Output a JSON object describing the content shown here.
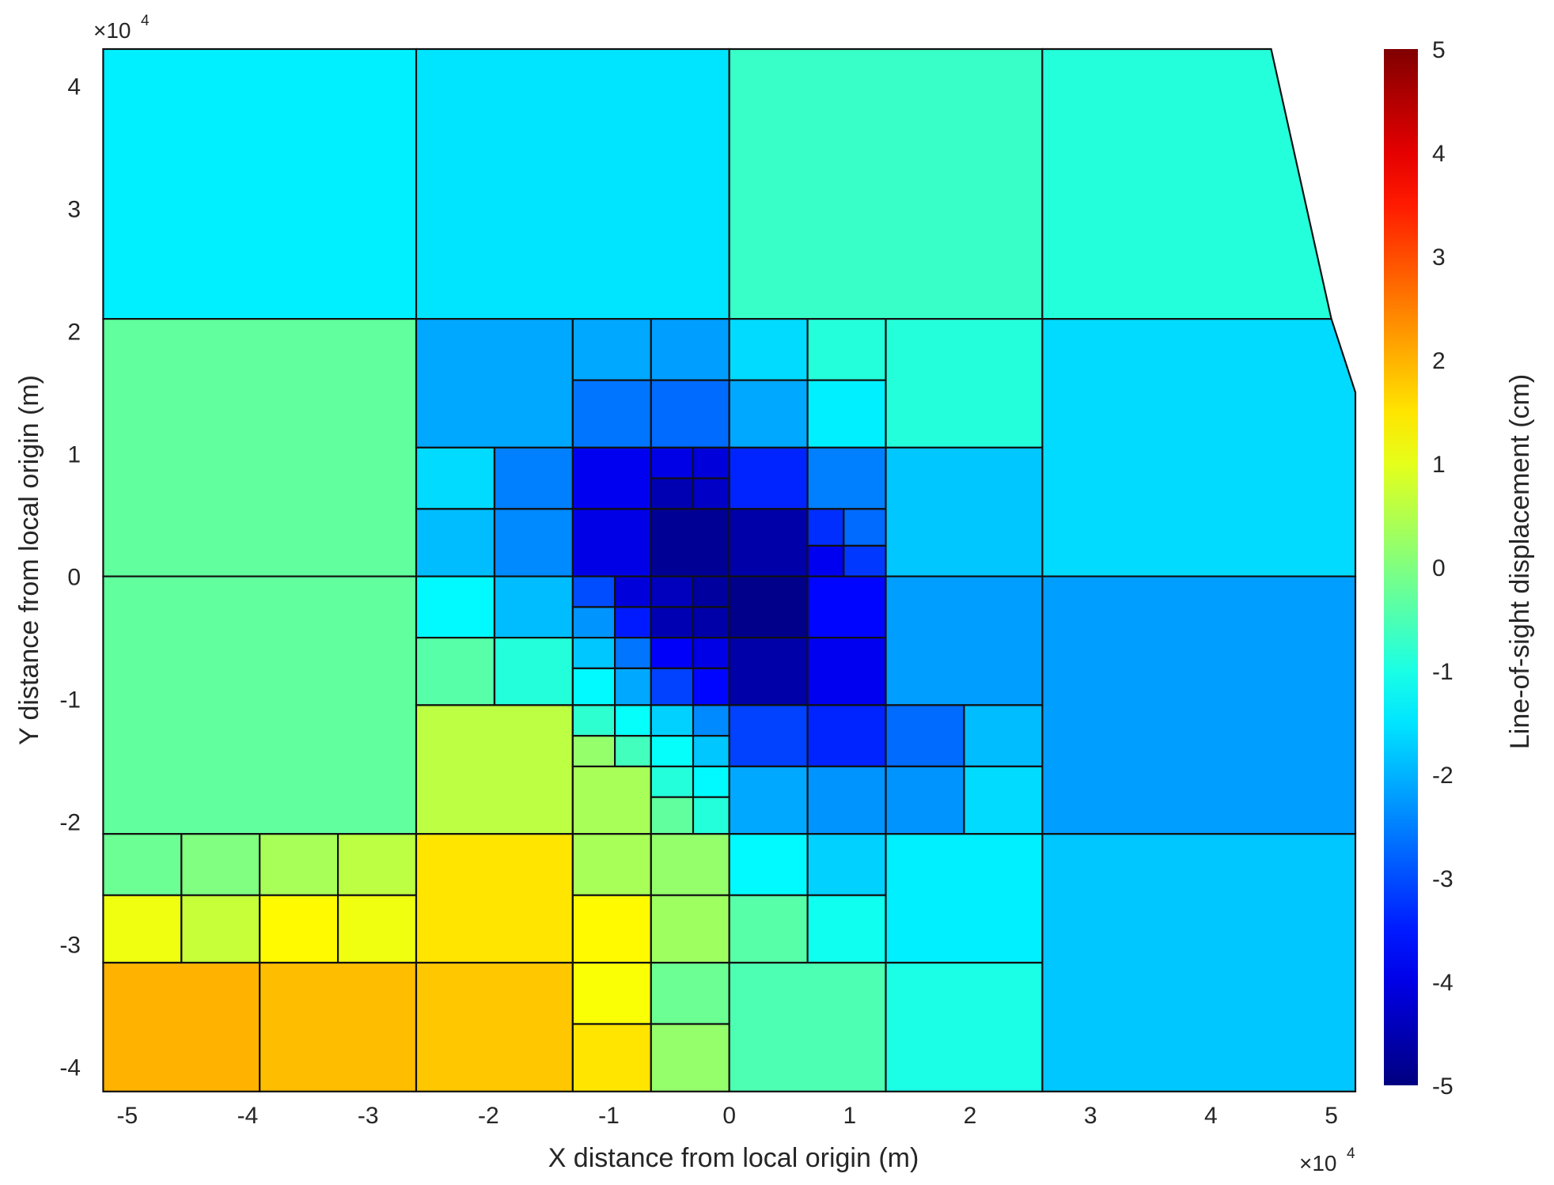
{
  "chart_data": {
    "type": "heatmap",
    "xlabel": "X distance from local origin (m)",
    "ylabel": "Y distance from local origin (m)",
    "x_multiplier": "×10",
    "x_multiplier_exp": "4",
    "y_multiplier": "×10",
    "y_multiplier_exp": "4",
    "xlim": [
      -5.15,
      5.2
    ],
    "ylim": [
      -4.15,
      4.3
    ],
    "x_ticks": [
      -5,
      -4,
      -3,
      -2,
      -1,
      0,
      1,
      2,
      3,
      4,
      5
    ],
    "x_tick_labels": [
      "-5",
      "-4",
      "-3",
      "-2",
      "-1",
      "0",
      "1",
      "2",
      "3",
      "4",
      "5"
    ],
    "y_ticks": [
      -4,
      -3,
      -2,
      -1,
      0,
      1,
      2,
      3,
      4
    ],
    "y_tick_labels": [
      "-4",
      "-3",
      "-2",
      "-1",
      "0",
      "1",
      "2",
      "3",
      "4"
    ],
    "colorbar": {
      "label": "Line-of-sight displacement (cm)",
      "range": [
        -5,
        5
      ],
      "colormap": "jet",
      "ticks": [
        -5,
        -4,
        -3,
        -2,
        -1,
        0,
        1,
        2,
        3,
        4,
        5
      ],
      "tick_labels": [
        "-5",
        "-4",
        "-3",
        "-2",
        "-1",
        "0",
        "1",
        "2",
        "3",
        "4",
        "5"
      ]
    },
    "cells": [
      {
        "x": [
          -5.2,
          -2.6
        ],
        "y": [
          2.1,
          4.3
        ],
        "v": -1.4
      },
      {
        "x": [
          -2.6,
          0.0
        ],
        "y": [
          2.1,
          4.3
        ],
        "v": -1.5
      },
      {
        "x": [
          0.0,
          2.6
        ],
        "y": [
          2.1,
          4.3
        ],
        "v": -0.7
      },
      {
        "x": [
          2.6,
          5.2
        ],
        "y": [
          2.1,
          4.3
        ],
        "poly": [
          [
            2.6,
            2.1
          ],
          [
            2.6,
            4.3
          ],
          [
            4.5,
            4.3
          ],
          [
            5.0,
            2.1
          ]
        ],
        "v": -0.9
      },
      {
        "x": [
          -5.2,
          -2.6
        ],
        "y": [
          0.0,
          2.1
        ],
        "v": -0.3
      },
      {
        "x": [
          2.6,
          5.2
        ],
        "y": [
          0.0,
          2.1
        ],
        "poly": [
          [
            2.6,
            0.0
          ],
          [
            2.6,
            2.1
          ],
          [
            5.0,
            2.1
          ],
          [
            5.2,
            1.5
          ],
          [
            5.2,
            0.0
          ]
        ],
        "v": -1.6
      },
      {
        "x": [
          -5.2,
          -2.6
        ],
        "y": [
          -2.1,
          0.0
        ],
        "v": -0.3
      },
      {
        "x": [
          2.6,
          5.2
        ],
        "y": [
          -2.1,
          0.0
        ],
        "v": -2.2
      },
      {
        "x": [
          2.6,
          5.2
        ],
        "y": [
          -4.2,
          -2.1
        ],
        "v": -1.8
      },
      {
        "x": [
          -2.6,
          -1.3
        ],
        "y": [
          1.05,
          2.1
        ],
        "v": -2.1
      },
      {
        "x": [
          -1.3,
          -0.65
        ],
        "y": [
          1.6,
          2.1
        ],
        "v": -2.1
      },
      {
        "x": [
          -0.65,
          0.0
        ],
        "y": [
          1.6,
          2.1
        ],
        "v": -2.2
      },
      {
        "x": [
          0.0,
          0.65
        ],
        "y": [
          1.6,
          2.1
        ],
        "v": -1.6
      },
      {
        "x": [
          0.65,
          1.3
        ],
        "y": [
          1.6,
          2.1
        ],
        "v": -0.9
      },
      {
        "x": [
          -1.3,
          -0.65
        ],
        "y": [
          1.05,
          1.6
        ],
        "v": -2.6
      },
      {
        "x": [
          -0.65,
          0.0
        ],
        "y": [
          1.05,
          1.6
        ],
        "v": -2.7
      },
      {
        "x": [
          0.0,
          0.65
        ],
        "y": [
          1.05,
          1.6
        ],
        "v": -2.1
      },
      {
        "x": [
          0.65,
          1.3
        ],
        "y": [
          1.05,
          1.6
        ],
        "v": -1.4
      },
      {
        "x": [
          1.3,
          2.6
        ],
        "y": [
          1.05,
          2.1
        ],
        "v": -0.9
      },
      {
        "x": [
          -2.6,
          -1.95
        ],
        "y": [
          0.55,
          1.05
        ],
        "v": -1.6
      },
      {
        "x": [
          -1.95,
          -1.3
        ],
        "y": [
          0.55,
          1.05
        ],
        "v": -2.5
      },
      {
        "x": [
          -2.6,
          -1.95
        ],
        "y": [
          0.0,
          0.55
        ],
        "v": -1.9
      },
      {
        "x": [
          -1.95,
          -1.3
        ],
        "y": [
          0.0,
          0.55
        ],
        "v": -2.4
      },
      {
        "x": [
          -1.3,
          -0.65
        ],
        "y": [
          0.55,
          1.05
        ],
        "v": -3.9
      },
      {
        "x": [
          -0.65,
          -0.3
        ],
        "y": [
          0.8,
          1.05
        ],
        "v": -4.0
      },
      {
        "x": [
          -0.3,
          0.0
        ],
        "y": [
          0.8,
          1.05
        ],
        "v": -4.1
      },
      {
        "x": [
          -0.65,
          -0.3
        ],
        "y": [
          0.55,
          0.8
        ],
        "v": -4.5
      },
      {
        "x": [
          -0.3,
          0.0
        ],
        "y": [
          0.55,
          0.8
        ],
        "v": -4.3
      },
      {
        "x": [
          -1.3,
          -0.65
        ],
        "y": [
          0.0,
          0.55
        ],
        "v": -4.0
      },
      {
        "x": [
          -0.65,
          0.0
        ],
        "y": [
          0.0,
          0.55
        ],
        "v": -4.8
      },
      {
        "x": [
          0.0,
          0.65
        ],
        "y": [
          0.55,
          1.05
        ],
        "v": -3.4
      },
      {
        "x": [
          0.65,
          1.3
        ],
        "y": [
          0.55,
          1.05
        ],
        "v": -2.5
      },
      {
        "x": [
          0.0,
          0.65
        ],
        "y": [
          0.0,
          0.55
        ],
        "v": -4.6
      },
      {
        "x": [
          0.65,
          0.95
        ],
        "y": [
          0.25,
          0.55
        ],
        "v": -3.3
      },
      {
        "x": [
          0.95,
          1.3
        ],
        "y": [
          0.25,
          0.55
        ],
        "v": -2.7
      },
      {
        "x": [
          0.65,
          0.95
        ],
        "y": [
          0.0,
          0.25
        ],
        "v": -3.9
      },
      {
        "x": [
          0.95,
          1.3
        ],
        "y": [
          0.0,
          0.25
        ],
        "v": -3.2
      },
      {
        "x": [
          1.3,
          2.6
        ],
        "y": [
          0.0,
          1.05
        ],
        "v": -1.8
      },
      {
        "x": [
          -2.6,
          -1.95
        ],
        "y": [
          -0.5,
          0.0
        ],
        "v": -1.3
      },
      {
        "x": [
          -1.95,
          -1.3
        ],
        "y": [
          -0.5,
          0.0
        ],
        "v": -1.9
      },
      {
        "x": [
          -2.6,
          -1.95
        ],
        "y": [
          -1.05,
          -0.5
        ],
        "v": -0.4
      },
      {
        "x": [
          -1.95,
          -1.3
        ],
        "y": [
          -1.05,
          -0.5
        ],
        "v": -0.9
      },
      {
        "x": [
          -1.3,
          -0.95
        ],
        "y": [
          -0.25,
          0.0
        ],
        "v": -3.0
      },
      {
        "x": [
          -0.95,
          -0.65
        ],
        "y": [
          -0.25,
          0.0
        ],
        "v": -4.1
      },
      {
        "x": [
          -1.3,
          -0.95
        ],
        "y": [
          -0.5,
          -0.25
        ],
        "v": -2.3
      },
      {
        "x": [
          -0.95,
          -0.65
        ],
        "y": [
          -0.5,
          -0.25
        ],
        "v": -3.5
      },
      {
        "x": [
          -0.65,
          -0.3
        ],
        "y": [
          -0.25,
          0.0
        ],
        "v": -4.4
      },
      {
        "x": [
          -0.3,
          0.0
        ],
        "y": [
          -0.25,
          0.0
        ],
        "v": -4.7
      },
      {
        "x": [
          -0.65,
          -0.3
        ],
        "y": [
          -0.5,
          -0.25
        ],
        "v": -4.5
      },
      {
        "x": [
          -0.3,
          0.0
        ],
        "y": [
          -0.5,
          -0.25
        ],
        "v": -4.6
      },
      {
        "x": [
          -1.3,
          -0.95
        ],
        "y": [
          -0.75,
          -0.5
        ],
        "v": -1.8
      },
      {
        "x": [
          -0.95,
          -0.65
        ],
        "y": [
          -0.75,
          -0.5
        ],
        "v": -2.6
      },
      {
        "x": [
          -1.3,
          -0.95
        ],
        "y": [
          -1.05,
          -0.75
        ],
        "v": -1.3
      },
      {
        "x": [
          -0.95,
          -0.65
        ],
        "y": [
          -1.05,
          -0.75
        ],
        "v": -2.1
      },
      {
        "x": [
          -0.65,
          -0.3
        ],
        "y": [
          -0.75,
          -0.5
        ],
        "v": -3.8
      },
      {
        "x": [
          -0.3,
          0.0
        ],
        "y": [
          -0.75,
          -0.5
        ],
        "v": -4.0
      },
      {
        "x": [
          -0.65,
          -0.3
        ],
        "y": [
          -1.05,
          -0.75
        ],
        "v": -3.1
      },
      {
        "x": [
          -0.3,
          0.0
        ],
        "y": [
          -1.05,
          -0.75
        ],
        "v": -3.7
      },
      {
        "x": [
          0.0,
          0.65
        ],
        "y": [
          -0.5,
          0.0
        ],
        "v": -4.9
      },
      {
        "x": [
          0.65,
          1.3
        ],
        "y": [
          -0.5,
          0.0
        ],
        "v": -3.7
      },
      {
        "x": [
          0.0,
          0.65
        ],
        "y": [
          -1.05,
          -0.5
        ],
        "v": -4.6
      },
      {
        "x": [
          0.65,
          1.3
        ],
        "y": [
          -1.05,
          -0.5
        ],
        "v": -3.9
      },
      {
        "x": [
          1.3,
          2.6
        ],
        "y": [
          -1.05,
          0.0
        ],
        "v": -2.2
      },
      {
        "x": [
          -2.6,
          -1.3
        ],
        "y": [
          -2.1,
          -1.05
        ],
        "v": 0.6
      },
      {
        "x": [
          -1.3,
          -0.95
        ],
        "y": [
          -1.3,
          -1.05
        ],
        "v": -0.8
      },
      {
        "x": [
          -0.95,
          -0.65
        ],
        "y": [
          -1.3,
          -1.05
        ],
        "v": -1.2
      },
      {
        "x": [
          -1.3,
          -0.95
        ],
        "y": [
          -1.55,
          -1.3
        ],
        "v": 0.2
      },
      {
        "x": [
          -0.95,
          -0.65
        ],
        "y": [
          -1.55,
          -1.3
        ],
        "v": -0.6
      },
      {
        "x": [
          -0.65,
          -0.3
        ],
        "y": [
          -1.3,
          -1.05
        ],
        "v": -1.7
      },
      {
        "x": [
          -0.3,
          0.0
        ],
        "y": [
          -1.3,
          -1.05
        ],
        "v": -2.4
      },
      {
        "x": [
          -0.65,
          -0.3
        ],
        "y": [
          -1.55,
          -1.3
        ],
        "v": -1.2
      },
      {
        "x": [
          -0.3,
          0.0
        ],
        "y": [
          -1.55,
          -1.3
        ],
        "v": -1.8
      },
      {
        "x": [
          -1.3,
          -0.65
        ],
        "y": [
          -2.1,
          -1.55
        ],
        "v": 0.4
      },
      {
        "x": [
          -0.65,
          -0.3
        ],
        "y": [
          -1.8,
          -1.55
        ],
        "v": -0.9
      },
      {
        "x": [
          -0.3,
          0.0
        ],
        "y": [
          -1.8,
          -1.55
        ],
        "v": -1.3
      },
      {
        "x": [
          -0.65,
          -0.3
        ],
        "y": [
          -2.1,
          -1.8
        ],
        "v": -0.3
      },
      {
        "x": [
          -0.3,
          0.0
        ],
        "y": [
          -2.1,
          -1.8
        ],
        "v": -0.9
      },
      {
        "x": [
          0.0,
          0.65
        ],
        "y": [
          -1.55,
          -1.05
        ],
        "v": -3.1
      },
      {
        "x": [
          0.65,
          1.3
        ],
        "y": [
          -1.55,
          -1.05
        ],
        "v": -3.4
      },
      {
        "x": [
          1.3,
          1.95
        ],
        "y": [
          -1.55,
          -1.05
        ],
        "v": -2.7
      },
      {
        "x": [
          1.95,
          2.6
        ],
        "y": [
          -1.55,
          -1.05
        ],
        "v": -1.9
      },
      {
        "x": [
          0.0,
          0.65
        ],
        "y": [
          -2.1,
          -1.55
        ],
        "v": -2.1
      },
      {
        "x": [
          0.65,
          1.3
        ],
        "y": [
          -2.1,
          -1.55
        ],
        "v": -2.3
      },
      {
        "x": [
          1.3,
          1.95
        ],
        "y": [
          -2.1,
          -1.55
        ],
        "v": -2.3
      },
      {
        "x": [
          1.95,
          2.6
        ],
        "y": [
          -2.1,
          -1.55
        ],
        "v": -1.6
      },
      {
        "x": [
          -5.2,
          -4.55
        ],
        "y": [
          -2.6,
          -2.1
        ],
        "v": -0.2
      },
      {
        "x": [
          -4.55,
          -3.9
        ],
        "y": [
          -2.6,
          -2.1
        ],
        "v": 0.0
      },
      {
        "x": [
          -3.9,
          -3.25
        ],
        "y": [
          -2.6,
          -2.1
        ],
        "v": 0.4
      },
      {
        "x": [
          -3.25,
          -2.6
        ],
        "y": [
          -2.6,
          -2.1
        ],
        "v": 0.6
      },
      {
        "x": [
          -5.2,
          -4.55
        ],
        "y": [
          -3.15,
          -2.6
        ],
        "v": 1.1
      },
      {
        "x": [
          -4.55,
          -3.9
        ],
        "y": [
          -3.15,
          -2.6
        ],
        "v": 0.7
      },
      {
        "x": [
          -3.9,
          -3.25
        ],
        "y": [
          -3.15,
          -2.6
        ],
        "v": 1.3
      },
      {
        "x": [
          -3.25,
          -2.6
        ],
        "y": [
          -3.15,
          -2.6
        ],
        "v": 1.1
      },
      {
        "x": [
          -2.6,
          -1.3
        ],
        "y": [
          -3.15,
          -2.1
        ],
        "v": 1.5
      },
      {
        "x": [
          -1.3,
          -0.65
        ],
        "y": [
          -2.6,
          -2.1
        ],
        "v": 0.4
      },
      {
        "x": [
          -0.65,
          0.0
        ],
        "y": [
          -2.6,
          -2.1
        ],
        "v": 0.2
      },
      {
        "x": [
          -1.3,
          -0.65
        ],
        "y": [
          -3.15,
          -2.6
        ],
        "v": 1.3
      },
      {
        "x": [
          -0.65,
          0.0
        ],
        "y": [
          -3.15,
          -2.6
        ],
        "v": 0.3
      },
      {
        "x": [
          0.0,
          0.65
        ],
        "y": [
          -2.6,
          -2.1
        ],
        "v": -1.3
      },
      {
        "x": [
          0.65,
          1.3
        ],
        "y": [
          -2.6,
          -2.1
        ],
        "v": -1.7
      },
      {
        "x": [
          0.0,
          0.65
        ],
        "y": [
          -3.15,
          -2.6
        ],
        "v": -0.4
      },
      {
        "x": [
          0.65,
          1.3
        ],
        "y": [
          -3.15,
          -2.6
        ],
        "v": -1.1
      },
      {
        "x": [
          1.3,
          2.6
        ],
        "y": [
          -3.15,
          -2.1
        ],
        "v": -1.4
      },
      {
        "x": [
          -5.2,
          -3.9
        ],
        "y": [
          -4.2,
          -3.15
        ],
        "v": 2.0
      },
      {
        "x": [
          -3.9,
          -2.6
        ],
        "y": [
          -4.2,
          -3.15
        ],
        "v": 1.9
      },
      {
        "x": [
          -2.6,
          -1.3
        ],
        "y": [
          -4.2,
          -3.15
        ],
        "v": 1.8
      },
      {
        "x": [
          -1.3,
          -0.65
        ],
        "y": [
          -3.65,
          -3.15
        ],
        "v": 1.2
      },
      {
        "x": [
          -0.65,
          0.0
        ],
        "y": [
          -3.65,
          -3.15
        ],
        "v": -0.2
      },
      {
        "x": [
          -1.3,
          -0.65
        ],
        "y": [
          -4.2,
          -3.65
        ],
        "v": 1.5
      },
      {
        "x": [
          -0.65,
          0.0
        ],
        "y": [
          -4.2,
          -3.65
        ],
        "v": 0.2
      },
      {
        "x": [
          0.0,
          1.3
        ],
        "y": [
          -4.2,
          -3.15
        ],
        "v": -0.5
      },
      {
        "x": [
          1.3,
          2.6
        ],
        "y": [
          -4.2,
          -3.15
        ],
        "v": -1.0
      }
    ]
  }
}
